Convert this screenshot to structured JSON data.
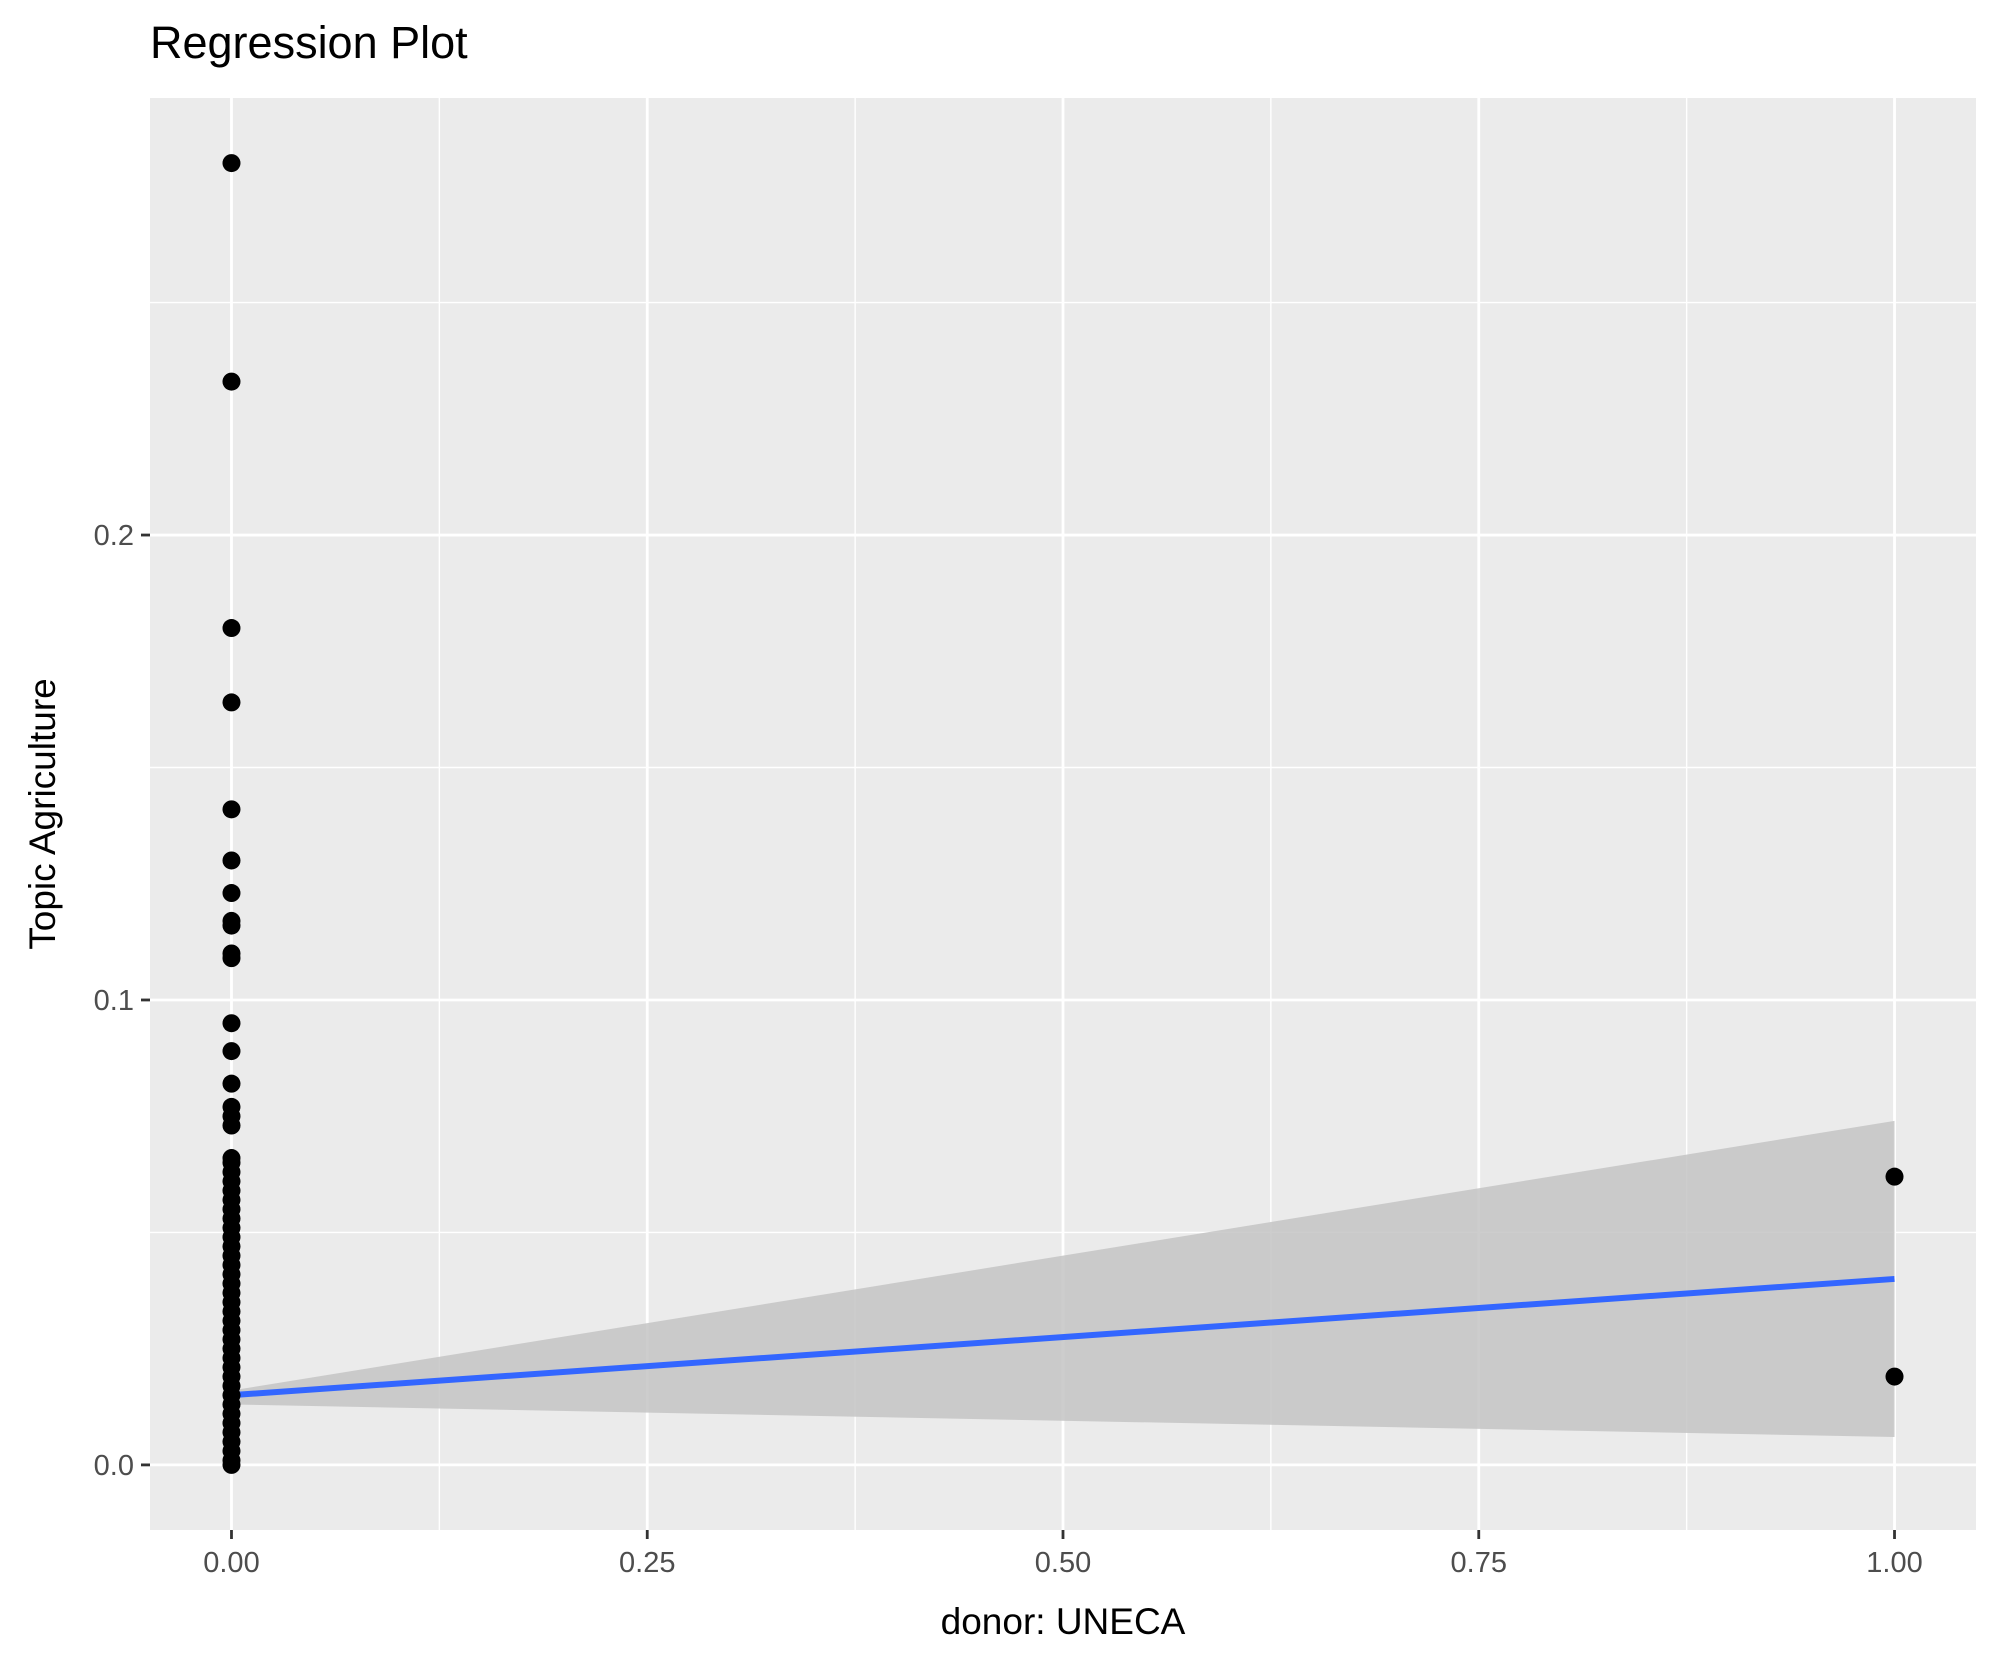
{
  "chart_data": {
    "type": "scatter",
    "title": "Regression Plot",
    "xlabel": "donor: UNECA",
    "ylabel": "Topic Agriculture",
    "xlim": [
      -0.049,
      1.049
    ],
    "ylim": [
      -0.014,
      0.294
    ],
    "x_ticks": [
      0.0,
      0.25,
      0.5,
      0.75,
      1.0
    ],
    "x_tick_labels": [
      "0.00",
      "0.25",
      "0.50",
      "0.75",
      "1.00"
    ],
    "y_ticks": [
      0.0,
      0.1,
      0.2
    ],
    "y_tick_labels": [
      "0.0",
      "0.1",
      "0.2"
    ],
    "grid": true,
    "panel_color": "#ebebeb",
    "grid_color": "#ffffff",
    "point_color": "#000000",
    "line_color": "#3366ff",
    "ribbon_color": "#c4c4c4",
    "points": [
      {
        "x": 0,
        "y": 0.28
      },
      {
        "x": 0,
        "y": 0.233
      },
      {
        "x": 0,
        "y": 0.18
      },
      {
        "x": 0,
        "y": 0.164
      },
      {
        "x": 0,
        "y": 0.141
      },
      {
        "x": 0,
        "y": 0.13
      },
      {
        "x": 0,
        "y": 0.123
      },
      {
        "x": 0,
        "y": 0.117
      },
      {
        "x": 0,
        "y": 0.116
      },
      {
        "x": 0,
        "y": 0.11
      },
      {
        "x": 0,
        "y": 0.109
      },
      {
        "x": 0,
        "y": 0.095
      },
      {
        "x": 0,
        "y": 0.089
      },
      {
        "x": 0,
        "y": 0.082
      },
      {
        "x": 0,
        "y": 0.077
      },
      {
        "x": 0,
        "y": 0.075
      },
      {
        "x": 0,
        "y": 0.073
      },
      {
        "x": 0,
        "y": 0.066
      },
      {
        "x": 0,
        "y": 0.065
      },
      {
        "x": 0,
        "y": 0.063
      },
      {
        "x": 0,
        "y": 0.061
      },
      {
        "x": 0,
        "y": 0.059
      },
      {
        "x": 0,
        "y": 0.057
      },
      {
        "x": 0,
        "y": 0.055
      },
      {
        "x": 0,
        "y": 0.053
      },
      {
        "x": 0,
        "y": 0.051
      },
      {
        "x": 0,
        "y": 0.049
      },
      {
        "x": 0,
        "y": 0.047
      },
      {
        "x": 0,
        "y": 0.045
      },
      {
        "x": 0,
        "y": 0.043
      },
      {
        "x": 0,
        "y": 0.041
      },
      {
        "x": 0,
        "y": 0.039
      },
      {
        "x": 0,
        "y": 0.037
      },
      {
        "x": 0,
        "y": 0.035
      },
      {
        "x": 0,
        "y": 0.033
      },
      {
        "x": 0,
        "y": 0.031
      },
      {
        "x": 0,
        "y": 0.029
      },
      {
        "x": 0,
        "y": 0.027
      },
      {
        "x": 0,
        "y": 0.025
      },
      {
        "x": 0,
        "y": 0.023
      },
      {
        "x": 0,
        "y": 0.021
      },
      {
        "x": 0,
        "y": 0.019
      },
      {
        "x": 0,
        "y": 0.017
      },
      {
        "x": 0,
        "y": 0.015
      },
      {
        "x": 0,
        "y": 0.013
      },
      {
        "x": 0,
        "y": 0.011
      },
      {
        "x": 0,
        "y": 0.009
      },
      {
        "x": 0,
        "y": 0.007
      },
      {
        "x": 0,
        "y": 0.005
      },
      {
        "x": 0,
        "y": 0.003
      },
      {
        "x": 0,
        "y": 0.001
      },
      {
        "x": 0,
        "y": 0.0
      },
      {
        "x": 1,
        "y": 0.062
      },
      {
        "x": 1,
        "y": 0.019
      }
    ],
    "regression_line": {
      "x": [
        0,
        1
      ],
      "y": [
        0.015,
        0.04
      ]
    },
    "confidence_band": {
      "x": [
        0,
        1
      ],
      "lower": [
        0.013,
        0.006
      ],
      "upper": [
        0.016,
        0.074
      ]
    }
  }
}
